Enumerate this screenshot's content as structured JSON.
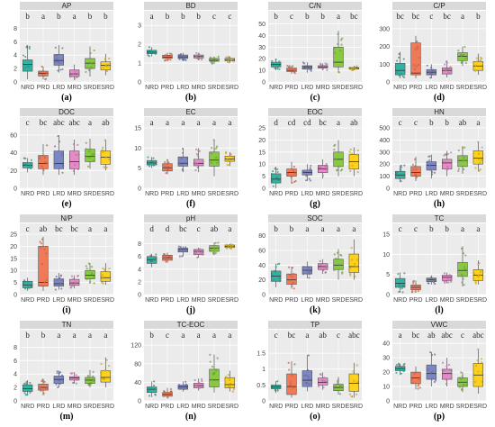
{
  "figure": {
    "groups": [
      "NRD",
      "PRD",
      "LRD",
      "MRD",
      "SRD",
      "ESRD"
    ],
    "colors": {
      "NRD": "#2fb3a3",
      "PRD": "#f07a58",
      "LRD": "#7c86c2",
      "MRD": "#e68bc7",
      "SRD": "#87c940",
      "ESRD": "#ffd21a",
      "panel_bg": "#ebebeb",
      "strip_bg": "#d9d9d9",
      "grid": "#ffffff"
    }
  },
  "chart_data": [
    {
      "type": "box",
      "title": "AP",
      "label": "(a)",
      "ylim": [
        0,
        9
      ],
      "yticks": [
        0,
        2,
        4,
        6,
        8
      ],
      "letters": [
        "b",
        "a",
        "b",
        "a",
        "b",
        "b"
      ],
      "boxes": [
        [
          0.4,
          1.6,
          2.6,
          3.3,
          5.5
        ],
        [
          0.4,
          0.9,
          1.3,
          1.6,
          2.3
        ],
        [
          1.4,
          2.5,
          3.2,
          4.1,
          5.5
        ],
        [
          0.3,
          0.8,
          1.2,
          1.8,
          2.6
        ],
        [
          0.8,
          2.0,
          2.8,
          3.5,
          5.3
        ],
        [
          1.0,
          1.8,
          2.5,
          3.0,
          4.2
        ]
      ]
    },
    {
      "type": "box",
      "title": "BD",
      "label": "(b)",
      "ylim": [
        0,
        3.2
      ],
      "yticks": [
        0,
        1,
        2,
        3
      ],
      "letters": [
        "a",
        "b",
        "b",
        "b",
        "c",
        "c"
      ],
      "boxes": [
        [
          1.35,
          1.5,
          1.58,
          1.68,
          1.85
        ],
        [
          1.1,
          1.25,
          1.32,
          1.42,
          1.55
        ],
        [
          1.1,
          1.25,
          1.33,
          1.43,
          1.55
        ],
        [
          1.15,
          1.27,
          1.35,
          1.43,
          1.55
        ],
        [
          0.95,
          1.1,
          1.15,
          1.25,
          1.35
        ],
        [
          1.0,
          1.12,
          1.18,
          1.25,
          1.35
        ]
      ]
    },
    {
      "type": "box",
      "title": "C/N",
      "label": "(c)",
      "ylim": [
        0,
        52
      ],
      "yticks": [
        0,
        10,
        20,
        30,
        40,
        50
      ],
      "letters": [
        "b",
        "c",
        "b",
        "b",
        "a",
        "bc"
      ],
      "boxes": [
        [
          10,
          13,
          15,
          17,
          20
        ],
        [
          7,
          9,
          10,
          12,
          14
        ],
        [
          8,
          11,
          13,
          14,
          17
        ],
        [
          10,
          12,
          13,
          14,
          16
        ],
        [
          8,
          13,
          17,
          30,
          44
        ],
        [
          10,
          11,
          12,
          12.5,
          14
        ]
      ]
    },
    {
      "type": "box",
      "title": "C/P",
      "label": "(d)",
      "ylim": [
        0,
        340
      ],
      "yticks": [
        0,
        100,
        200,
        300
      ],
      "letters": [
        "bc",
        "bc",
        "c",
        "bc",
        "a",
        "b"
      ],
      "boxes": [
        [
          20,
          40,
          65,
          105,
          170
        ],
        [
          20,
          40,
          50,
          220,
          260
        ],
        [
          20,
          40,
          55,
          70,
          100
        ],
        [
          25,
          45,
          65,
          80,
          120
        ],
        [
          90,
          120,
          145,
          165,
          200
        ],
        [
          40,
          65,
          90,
          115,
          160
        ]
      ]
    },
    {
      "type": "box",
      "title": "DOC",
      "label": "(e)",
      "ylim": [
        0,
        68
      ],
      "yticks": [
        0,
        20,
        40,
        60
      ],
      "letters": [
        "c",
        "bc",
        "abc",
        "abc",
        "a",
        "ab"
      ],
      "boxes": [
        [
          18,
          23,
          26,
          29,
          34
        ],
        [
          15,
          22,
          28,
          37,
          50
        ],
        [
          15,
          22,
          28,
          42,
          60
        ],
        [
          15,
          22,
          30,
          42,
          55
        ],
        [
          22,
          30,
          36,
          44,
          56
        ],
        [
          20,
          27,
          35,
          42,
          55
        ]
      ]
    },
    {
      "type": "box",
      "title": "EC",
      "label": "(f)",
      "ylim": [
        0,
        15
      ],
      "yticks": [
        0,
        5,
        10,
        15
      ],
      "letters": [
        "a",
        "a",
        "a",
        "a",
        "a",
        "a"
      ],
      "boxes": [
        [
          5,
          5.8,
          6.3,
          6.9,
          7.8
        ],
        [
          3.5,
          4.3,
          5.1,
          6.1,
          7.2
        ],
        [
          4,
          5.5,
          6.2,
          7.8,
          10
        ],
        [
          4,
          5.6,
          6.2,
          7.2,
          10
        ],
        [
          3,
          5.5,
          7,
          9,
          12
        ],
        [
          5.5,
          6.7,
          7.3,
          8,
          9
        ]
      ]
    },
    {
      "type": "box",
      "title": "EOC",
      "label": "(g)",
      "ylim": [
        0,
        25
      ],
      "yticks": [
        0,
        5,
        10,
        15,
        20,
        25
      ],
      "letters": [
        "d",
        "cd",
        "cd",
        "bc",
        "a",
        "ab"
      ],
      "boxes": [
        [
          0,
          2.2,
          3.8,
          6,
          9
        ],
        [
          2,
          5,
          6.5,
          8,
          11
        ],
        [
          3,
          5.5,
          6.5,
          7.5,
          10
        ],
        [
          4,
          6.5,
          8,
          9.5,
          12
        ],
        [
          5,
          9,
          12,
          15,
          20
        ],
        [
          5,
          8,
          11,
          14,
          17
        ]
      ]
    },
    {
      "type": "box",
      "title": "HN",
      "label": "(h)",
      "ylim": [
        0,
        500
      ],
      "yticks": [
        0,
        100,
        200,
        300,
        400,
        500
      ],
      "letters": [
        "c",
        "c",
        "b",
        "b",
        "ab",
        "a"
      ],
      "boxes": [
        [
          50,
          80,
          110,
          140,
          190
        ],
        [
          60,
          100,
          130,
          180,
          260
        ],
        [
          80,
          150,
          190,
          220,
          280
        ],
        [
          100,
          160,
          210,
          240,
          310
        ],
        [
          120,
          180,
          230,
          270,
          350
        ],
        [
          140,
          200,
          250,
          310,
          390
        ]
      ]
    },
    {
      "type": "box",
      "title": "N/P",
      "label": "(i)",
      "ylim": [
        0,
        25
      ],
      "yticks": [
        0,
        5,
        10,
        15,
        20,
        25
      ],
      "letters": [
        "c",
        "ab",
        "bc",
        "bc",
        "a",
        "a"
      ],
      "boxes": [
        [
          1.5,
          2.8,
          4,
          5.5,
          7
        ],
        [
          1.5,
          3.5,
          5,
          20,
          24
        ],
        [
          2,
          3.5,
          4.5,
          6.5,
          9
        ],
        [
          2.5,
          3.8,
          4.8,
          6.3,
          8
        ],
        [
          4.5,
          6.5,
          8,
          10,
          13
        ],
        [
          4,
          5.5,
          7,
          9.5,
          13
        ]
      ]
    },
    {
      "type": "box",
      "title": "pH",
      "label": "(j)",
      "ylim": [
        0,
        9.5
      ],
      "yticks": [
        0,
        2,
        4,
        6,
        8
      ],
      "letters": [
        "d",
        "d",
        "bc",
        "c",
        "ab",
        "a"
      ],
      "boxes": [
        [
          4.3,
          4.9,
          5.5,
          6,
          6.4
        ],
        [
          5,
          5.4,
          5.8,
          6.2,
          6.6
        ],
        [
          6,
          6.7,
          7.1,
          7.3,
          7.6
        ],
        [
          5.8,
          6.3,
          6.8,
          7.1,
          7.4
        ],
        [
          6.2,
          6.8,
          7.3,
          7.7,
          8.2
        ],
        [
          7.2,
          7.4,
          7.6,
          7.8,
          8
        ]
      ]
    },
    {
      "type": "box",
      "title": "SOC",
      "label": "(k)",
      "ylim": [
        0,
        82
      ],
      "yticks": [
        0,
        20,
        40,
        60,
        80
      ],
      "letters": [
        "b",
        "b",
        "a",
        "a",
        "a",
        "a"
      ],
      "boxes": [
        [
          10,
          18,
          25,
          32,
          42
        ],
        [
          8,
          14,
          20,
          28,
          38
        ],
        [
          22,
          28,
          33,
          38,
          45
        ],
        [
          28,
          34,
          38,
          42,
          48
        ],
        [
          20,
          34,
          40,
          48,
          62
        ],
        [
          20,
          30,
          38,
          55,
          75
        ]
      ]
    },
    {
      "type": "box",
      "title": "TC",
      "label": "(l)",
      "ylim": [
        0,
        15
      ],
      "yticks": [
        0,
        5,
        10,
        15
      ],
      "letters": [
        "c",
        "c",
        "b",
        "b",
        "a",
        "a"
      ],
      "boxes": [
        [
          0.5,
          1.8,
          2.8,
          4,
          5.5
        ],
        [
          0.5,
          1.2,
          1.8,
          2.4,
          3.5
        ],
        [
          2.5,
          3.2,
          3.7,
          4.1,
          4.8
        ],
        [
          2.8,
          3.5,
          4.3,
          4.8,
          5.5
        ],
        [
          2,
          4.5,
          6,
          8,
          12
        ],
        [
          2.5,
          3.5,
          4.8,
          6.2,
          8.5
        ]
      ]
    },
    {
      "type": "box",
      "title": "TN",
      "label": "(m)",
      "ylim": [
        0,
        9
      ],
      "yticks": [
        0,
        2,
        4,
        6,
        8
      ],
      "letters": [
        "b",
        "b",
        "a",
        "a",
        "a",
        "a"
      ],
      "boxes": [
        [
          0.8,
          1.4,
          1.8,
          2.4,
          3.1
        ],
        [
          0.8,
          1.6,
          2,
          2.5,
          3.3
        ],
        [
          2,
          2.6,
          3.2,
          3.7,
          4.5
        ],
        [
          2.6,
          3.1,
          3.4,
          3.6,
          4.3
        ],
        [
          2,
          2.6,
          3.1,
          3.5,
          4.6
        ],
        [
          2,
          2.8,
          3.5,
          4.5,
          6.5
        ]
      ]
    },
    {
      "type": "box",
      "title": "TC-EOC",
      "label": "(n)",
      "ylim": [
        0,
        130
      ],
      "yticks": [
        0,
        40,
        80,
        120
      ],
      "letters": [
        "b",
        "c",
        "a",
        "a",
        "a",
        "a"
      ],
      "boxes": [
        [
          8,
          18,
          25,
          30,
          42
        ],
        [
          5,
          10,
          14,
          18,
          28
        ],
        [
          20,
          25,
          30,
          34,
          42
        ],
        [
          22,
          28,
          33,
          38,
          48
        ],
        [
          18,
          30,
          45,
          68,
          100
        ],
        [
          20,
          28,
          35,
          50,
          65
        ]
      ]
    },
    {
      "type": "box",
      "title": "TP",
      "label": "(o)",
      "ylim": [
        0,
        1.9
      ],
      "yticks": [
        0,
        0.5,
        1,
        1.5
      ],
      "letters": [
        "c",
        "bc",
        "a",
        "ab",
        "c",
        "abc"
      ],
      "boxes": [
        [
          0.25,
          0.38,
          0.44,
          0.5,
          0.62
        ],
        [
          0.1,
          0.2,
          0.45,
          0.85,
          1.25
        ],
        [
          0.3,
          0.45,
          0.65,
          0.95,
          1.45
        ],
        [
          0.35,
          0.5,
          0.58,
          0.72,
          0.9
        ],
        [
          0.2,
          0.32,
          0.42,
          0.52,
          0.75
        ],
        [
          0.1,
          0.3,
          0.55,
          0.85,
          1.2
        ]
      ]
    },
    {
      "type": "box",
      "title": "VWC",
      "label": "(p)",
      "ylim": [
        0,
        42
      ],
      "yticks": [
        0,
        10,
        20,
        30,
        40
      ],
      "letters": [
        "a",
        "bc",
        "ab",
        "abc",
        "c",
        "abc"
      ],
      "boxes": [
        [
          18,
          21,
          22.5,
          24,
          26
        ],
        [
          8,
          12,
          16,
          20,
          24
        ],
        [
          10,
          15,
          19,
          25,
          34
        ],
        [
          10,
          15,
          19,
          22,
          30
        ],
        [
          6,
          10,
          13,
          16,
          20
        ],
        [
          5,
          10,
          18,
          26,
          36
        ]
      ]
    }
  ]
}
